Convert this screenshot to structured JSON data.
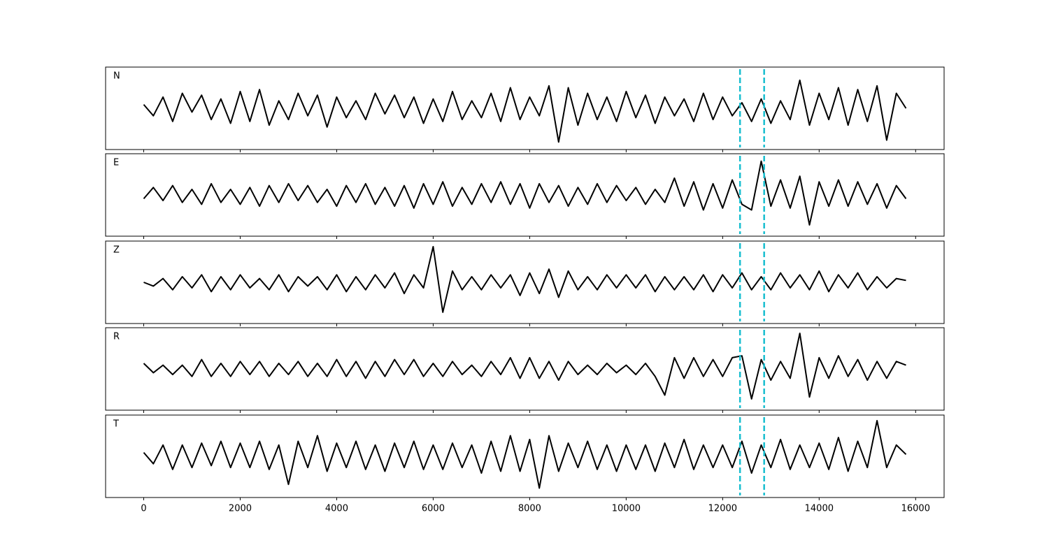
{
  "chart_data": [
    {
      "type": "line",
      "label": "N",
      "color": "#000000",
      "xlim": [
        -790,
        16590
      ],
      "ylim": [
        -1.1,
        1.1
      ],
      "xticks": [
        0,
        2000,
        4000,
        6000,
        8000,
        10000,
        12000,
        14000,
        16000
      ],
      "vlines": [
        12360,
        12860
      ],
      "vline_color": "#17becf",
      "x": [
        0,
        200,
        400,
        600,
        800,
        1000,
        1200,
        1400,
        1600,
        1800,
        2000,
        2200,
        2400,
        2600,
        2800,
        3000,
        3200,
        3400,
        3600,
        3800,
        4000,
        4200,
        4400,
        4600,
        4800,
        5000,
        5200,
        5400,
        5600,
        5800,
        6000,
        6200,
        6400,
        6600,
        6800,
        7000,
        7200,
        7400,
        7600,
        7800,
        8000,
        8200,
        8400,
        8600,
        8800,
        9000,
        9200,
        9400,
        9600,
        9800,
        10000,
        10200,
        10400,
        10600,
        10800,
        11000,
        11200,
        11400,
        11600,
        11800,
        12000,
        12200,
        12400,
        12600,
        12800,
        13000,
        13200,
        13400,
        13600,
        13800,
        14000,
        14200,
        14400,
        14600,
        14800,
        15000,
        15200,
        15400,
        15600,
        15800
      ],
      "values": [
        0.1,
        -0.2,
        0.3,
        -0.35,
        0.4,
        -0.1,
        0.35,
        -0.3,
        0.25,
        -0.4,
        0.45,
        -0.35,
        0.5,
        -0.45,
        0.2,
        -0.3,
        0.4,
        -0.2,
        0.35,
        -0.5,
        0.3,
        -0.25,
        0.2,
        -0.3,
        0.4,
        -0.15,
        0.35,
        -0.25,
        0.3,
        -0.4,
        0.25,
        -0.35,
        0.45,
        -0.3,
        0.2,
        -0.25,
        0.4,
        -0.35,
        0.55,
        -0.3,
        0.3,
        -0.2,
        0.6,
        -0.9,
        0.55,
        -0.45,
        0.4,
        -0.3,
        0.3,
        -0.35,
        0.45,
        -0.25,
        0.35,
        -0.4,
        0.3,
        -0.2,
        0.25,
        -0.35,
        0.4,
        -0.3,
        0.3,
        -0.2,
        0.15,
        -0.35,
        0.25,
        -0.4,
        0.2,
        -0.3,
        0.75,
        -0.45,
        0.4,
        -0.3,
        0.55,
        -0.45,
        0.5,
        -0.35,
        0.6,
        -0.85,
        0.4,
        0.0
      ]
    },
    {
      "type": "line",
      "label": "E",
      "color": "#000000",
      "xlim": [
        -790,
        16590
      ],
      "ylim": [
        -1.1,
        1.1
      ],
      "xticks": [
        0,
        2000,
        4000,
        6000,
        8000,
        10000,
        12000,
        14000,
        16000
      ],
      "vlines": [
        12360,
        12860
      ],
      "vline_color": "#17becf",
      "x": [
        0,
        200,
        400,
        600,
        800,
        1000,
        1200,
        1400,
        1600,
        1800,
        2000,
        2200,
        2400,
        2600,
        2800,
        3000,
        3200,
        3400,
        3600,
        3800,
        4000,
        4200,
        4400,
        4600,
        4800,
        5000,
        5200,
        5400,
        5600,
        5800,
        6000,
        6200,
        6400,
        6600,
        6800,
        7000,
        7200,
        7400,
        7600,
        7800,
        8000,
        8200,
        8400,
        8600,
        8800,
        9000,
        9200,
        9400,
        9600,
        9800,
        10000,
        10200,
        10400,
        10600,
        10800,
        11000,
        11200,
        11400,
        11600,
        11800,
        12000,
        12200,
        12400,
        12600,
        12800,
        13000,
        13200,
        13400,
        13600,
        13800,
        14000,
        14200,
        14400,
        14600,
        14800,
        15000,
        15200,
        15400,
        15600,
        15800
      ],
      "values": [
        -0.1,
        0.2,
        -0.15,
        0.25,
        -0.2,
        0.15,
        -0.25,
        0.3,
        -0.2,
        0.15,
        -0.25,
        0.2,
        -0.3,
        0.25,
        -0.2,
        0.3,
        -0.15,
        0.25,
        -0.2,
        0.15,
        -0.3,
        0.25,
        -0.2,
        0.3,
        -0.25,
        0.2,
        -0.3,
        0.25,
        -0.35,
        0.3,
        -0.25,
        0.35,
        -0.3,
        0.2,
        -0.25,
        0.3,
        -0.2,
        0.35,
        -0.25,
        0.3,
        -0.35,
        0.3,
        -0.2,
        0.25,
        -0.3,
        0.2,
        -0.25,
        0.3,
        -0.2,
        0.25,
        -0.15,
        0.2,
        -0.25,
        0.15,
        -0.2,
        0.45,
        -0.3,
        0.35,
        -0.4,
        0.3,
        -0.35,
        0.4,
        -0.25,
        -0.4,
        0.9,
        -0.3,
        0.4,
        -0.35,
        0.5,
        -0.8,
        0.35,
        -0.3,
        0.4,
        -0.3,
        0.35,
        -0.25,
        0.3,
        -0.35,
        0.25,
        -0.1
      ]
    },
    {
      "type": "line",
      "label": "Z",
      "color": "#000000",
      "xlim": [
        -790,
        16590
      ],
      "ylim": [
        -1.1,
        1.1
      ],
      "xticks": [
        0,
        2000,
        4000,
        6000,
        8000,
        10000,
        12000,
        14000,
        16000
      ],
      "vlines": [
        12360,
        12860
      ],
      "vline_color": "#17becf",
      "x": [
        0,
        200,
        400,
        600,
        800,
        1000,
        1200,
        1400,
        1600,
        1800,
        2000,
        2200,
        2400,
        2600,
        2800,
        3000,
        3200,
        3400,
        3600,
        3800,
        4000,
        4200,
        4400,
        4600,
        4800,
        5000,
        5200,
        5400,
        5600,
        5800,
        6000,
        6200,
        6400,
        6600,
        6800,
        7000,
        7200,
        7400,
        7600,
        7800,
        8000,
        8200,
        8400,
        8600,
        8800,
        9000,
        9200,
        9400,
        9600,
        9800,
        10000,
        10200,
        10400,
        10600,
        10800,
        11000,
        11200,
        11400,
        11600,
        11800,
        12000,
        12200,
        12400,
        12600,
        12800,
        13000,
        13200,
        13400,
        13600,
        13800,
        14000,
        14200,
        14400,
        14600,
        14800,
        15000,
        15200,
        15400,
        15600,
        15800
      ],
      "values": [
        0.0,
        -0.1,
        0.1,
        -0.2,
        0.15,
        -0.15,
        0.2,
        -0.25,
        0.15,
        -0.2,
        0.2,
        -0.15,
        0.1,
        -0.2,
        0.2,
        -0.25,
        0.15,
        -0.1,
        0.15,
        -0.2,
        0.2,
        -0.25,
        0.15,
        -0.2,
        0.2,
        -0.15,
        0.25,
        -0.3,
        0.2,
        -0.15,
        0.95,
        -0.8,
        0.3,
        -0.2,
        0.15,
        -0.2,
        0.2,
        -0.15,
        0.2,
        -0.35,
        0.25,
        -0.3,
        0.35,
        -0.4,
        0.3,
        -0.2,
        0.15,
        -0.2,
        0.2,
        -0.15,
        0.2,
        -0.15,
        0.2,
        -0.25,
        0.15,
        -0.2,
        0.15,
        -0.2,
        0.2,
        -0.25,
        0.2,
        -0.15,
        0.25,
        -0.2,
        0.15,
        -0.2,
        0.25,
        -0.15,
        0.2,
        -0.2,
        0.3,
        -0.25,
        0.2,
        -0.15,
        0.25,
        -0.2,
        0.15,
        -0.15,
        0.1,
        0.05
      ]
    },
    {
      "type": "line",
      "label": "R",
      "color": "#000000",
      "xlim": [
        -790,
        16590
      ],
      "ylim": [
        -1.1,
        1.1
      ],
      "xticks": [
        0,
        2000,
        4000,
        6000,
        8000,
        10000,
        12000,
        14000,
        16000
      ],
      "vlines": [
        12360,
        12860
      ],
      "vline_color": "#17becf",
      "x": [
        0,
        200,
        400,
        600,
        800,
        1000,
        1200,
        1400,
        1600,
        1800,
        2000,
        2200,
        2400,
        2600,
        2800,
        3000,
        3200,
        3400,
        3600,
        3800,
        4000,
        4200,
        4400,
        4600,
        4800,
        5000,
        5200,
        5400,
        5600,
        5800,
        6000,
        6200,
        6400,
        6600,
        6800,
        7000,
        7200,
        7400,
        7600,
        7800,
        8000,
        8200,
        8400,
        8600,
        8800,
        9000,
        9200,
        9400,
        9600,
        9800,
        10000,
        10200,
        10400,
        10600,
        10800,
        11000,
        11200,
        11400,
        11600,
        11800,
        12000,
        12200,
        12400,
        12600,
        12800,
        13000,
        13200,
        13400,
        13600,
        13800,
        14000,
        14200,
        14400,
        14600,
        14800,
        15000,
        15200,
        15400,
        15600,
        15800
      ],
      "values": [
        0.15,
        -0.1,
        0.1,
        -0.15,
        0.1,
        -0.2,
        0.25,
        -0.2,
        0.15,
        -0.2,
        0.2,
        -0.15,
        0.2,
        -0.2,
        0.15,
        -0.15,
        0.2,
        -0.2,
        0.15,
        -0.2,
        0.25,
        -0.2,
        0.2,
        -0.25,
        0.2,
        -0.2,
        0.25,
        -0.15,
        0.25,
        -0.2,
        0.15,
        -0.2,
        0.2,
        -0.15,
        0.1,
        -0.2,
        0.2,
        -0.15,
        0.3,
        -0.25,
        0.3,
        -0.25,
        0.2,
        -0.3,
        0.2,
        -0.15,
        0.1,
        -0.15,
        0.15,
        -0.1,
        0.1,
        -0.15,
        0.15,
        -0.2,
        -0.7,
        0.3,
        -0.25,
        0.3,
        -0.2,
        0.25,
        -0.2,
        0.3,
        0.35,
        -0.8,
        0.25,
        -0.3,
        0.2,
        -0.25,
        0.95,
        -0.75,
        0.3,
        -0.25,
        0.35,
        -0.2,
        0.25,
        -0.3,
        0.2,
        -0.25,
        0.2,
        0.1
      ]
    },
    {
      "type": "line",
      "label": "T",
      "color": "#000000",
      "xlim": [
        -790,
        16590
      ],
      "ylim": [
        -1.1,
        1.1
      ],
      "xticks": [
        0,
        2000,
        4000,
        6000,
        8000,
        10000,
        12000,
        14000,
        16000
      ],
      "vlines": [
        12360,
        12860
      ],
      "vline_color": "#17becf",
      "x": [
        0,
        200,
        400,
        600,
        800,
        1000,
        1200,
        1400,
        1600,
        1800,
        2000,
        2200,
        2400,
        2600,
        2800,
        3000,
        3200,
        3400,
        3600,
        3800,
        4000,
        4200,
        4400,
        4600,
        4800,
        5000,
        5200,
        5400,
        5600,
        5800,
        6000,
        6200,
        6400,
        6600,
        6800,
        7000,
        7200,
        7400,
        7600,
        7800,
        8000,
        8200,
        8400,
        8600,
        8800,
        9000,
        9200,
        9400,
        9600,
        9800,
        10000,
        10200,
        10400,
        10600,
        10800,
        11000,
        11200,
        11400,
        11600,
        11800,
        12000,
        12200,
        12400,
        12600,
        12800,
        13000,
        13200,
        13400,
        13600,
        13800,
        14000,
        14200,
        14400,
        14600,
        14800,
        15000,
        15200,
        15400,
        15600,
        15800
      ],
      "values": [
        0.1,
        -0.2,
        0.3,
        -0.35,
        0.3,
        -0.3,
        0.35,
        -0.25,
        0.4,
        -0.3,
        0.35,
        -0.3,
        0.4,
        -0.35,
        0.3,
        -0.75,
        0.4,
        -0.3,
        0.55,
        -0.4,
        0.35,
        -0.3,
        0.4,
        -0.35,
        0.3,
        -0.4,
        0.35,
        -0.3,
        0.4,
        -0.35,
        0.3,
        -0.35,
        0.35,
        -0.3,
        0.3,
        -0.45,
        0.4,
        -0.4,
        0.55,
        -0.4,
        0.45,
        -0.85,
        0.55,
        -0.4,
        0.35,
        -0.3,
        0.4,
        -0.35,
        0.3,
        -0.4,
        0.3,
        -0.35,
        0.3,
        -0.4,
        0.35,
        -0.3,
        0.45,
        -0.35,
        0.3,
        -0.3,
        0.3,
        -0.3,
        0.4,
        -0.45,
        0.3,
        -0.3,
        0.45,
        -0.35,
        0.3,
        -0.3,
        0.35,
        -0.35,
        0.5,
        -0.4,
        0.4,
        -0.3,
        0.95,
        -0.3,
        0.3,
        0.05
      ]
    }
  ]
}
